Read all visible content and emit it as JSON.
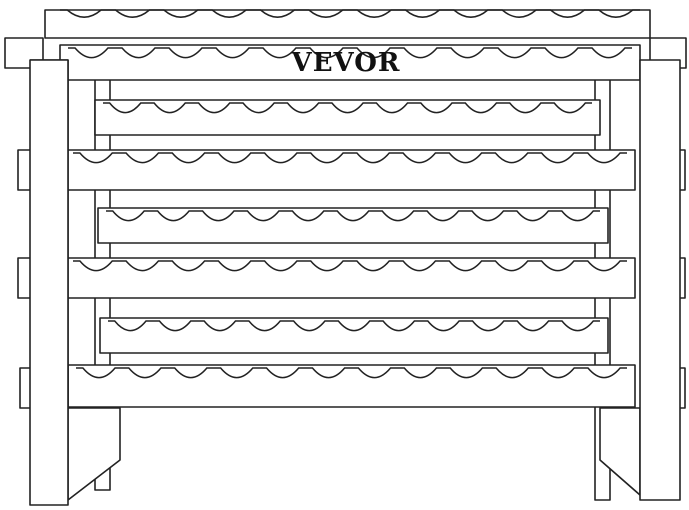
{
  "logo": {
    "text": "VEVOR"
  }
}
